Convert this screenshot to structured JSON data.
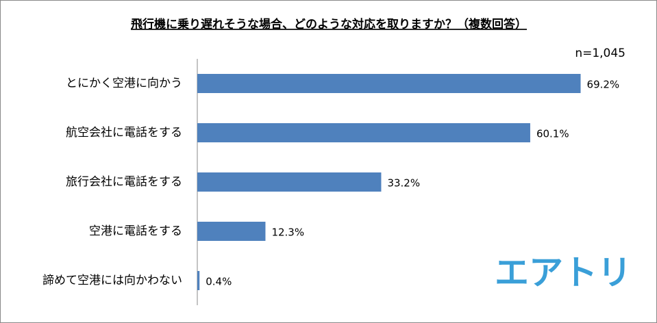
{
  "chart_data": {
    "type": "bar",
    "orientation": "horizontal",
    "title": "飛行機に乗り遅れそうな場合、どのような対応を取りますか？（複数回答）",
    "annotation": "n=1,045",
    "logo": "エアトリ",
    "categories": [
      "とにかく空港に向かう",
      "航空会社に電話をする",
      "旅行会社に電話をする",
      "空港に電話をする",
      "諦めて空港には向かわない"
    ],
    "values": [
      69.2,
      60.1,
      33.2,
      12.3,
      0.4
    ],
    "value_labels": [
      "69.2%",
      "60.1%",
      "33.2%",
      "12.3%",
      "0.4%"
    ],
    "color": "#4f81bd",
    "xlim": [
      0,
      70
    ]
  }
}
